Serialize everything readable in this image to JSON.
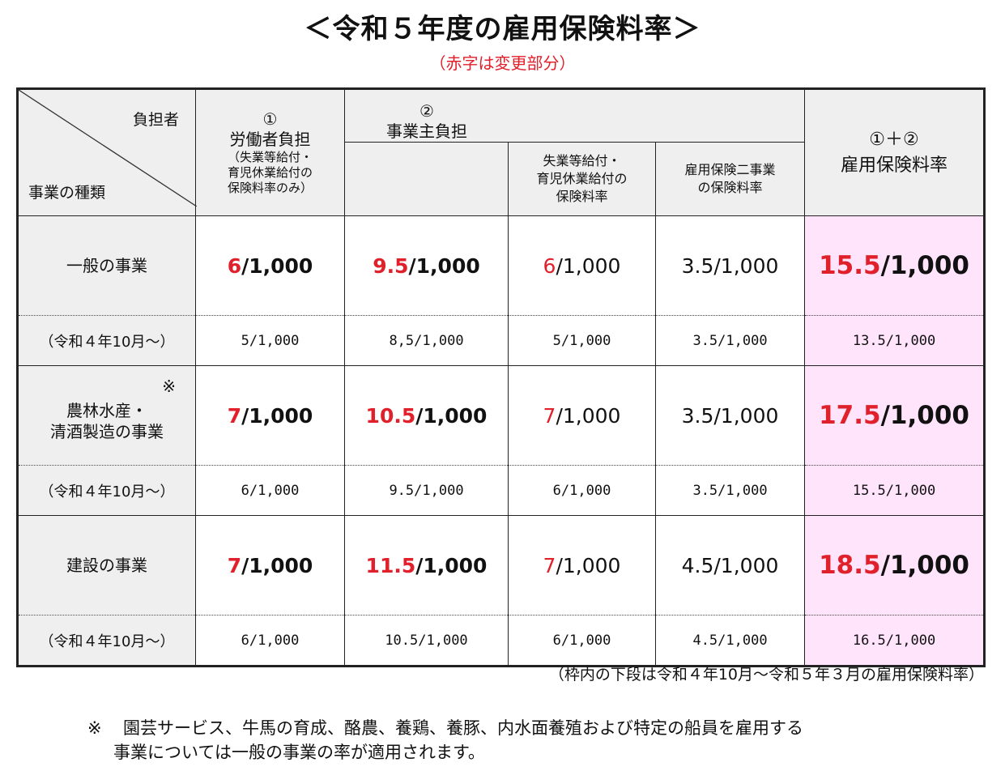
{
  "title": "＜令和５年度の雇用保険料率＞",
  "subtitle": "（赤字は変更部分）",
  "header": {
    "corner_top": "負担者",
    "corner_bottom": "事業の種類",
    "worker_num": "①",
    "worker_title": "労働者負担",
    "worker_note_1": "（失業等給付・",
    "worker_note_2": "育児休業給付の",
    "worker_note_3": "保険料率のみ）",
    "employer_num": "②",
    "employer_title": "事業主負担",
    "emp_sub1_1": "失業等給付・",
    "emp_sub1_2": "育児休業給付の",
    "emp_sub1_3": "保険料率",
    "emp_sub2_1": "雇用保険二事業",
    "emp_sub2_2": "の保険料率",
    "sum_num": "①＋②",
    "sum_title": "雇用保険料率"
  },
  "rows": [
    {
      "label": "一般の事業",
      "label2": "",
      "asterisk": "",
      "worker_red": "6",
      "worker_rest": "/1,000",
      "employer_red": "9.5",
      "employer_rest": "/1,000",
      "unemp_red": "6",
      "unemp_rest": "/1,000",
      "two": "3.5/1,000",
      "sum_red": "15.5",
      "sum_rest": "/1,000",
      "prev_label": "（令和４年10月～）",
      "prev": [
        "5/1,000",
        "8,5/1,000",
        "5/1,000",
        "3.5/1,000",
        "13.5/1,000"
      ]
    },
    {
      "label": "農林水産・",
      "label2": "清酒製造の事業",
      "asterisk": "※",
      "worker_red": "7",
      "worker_rest": "/1,000",
      "employer_red": "10.5",
      "employer_rest": "/1,000",
      "unemp_red": "7",
      "unemp_rest": "/1,000",
      "two": "3.5/1,000",
      "sum_red": "17.5",
      "sum_rest": "/1,000",
      "prev_label": "（令和４年10月～）",
      "prev": [
        "6/1,000",
        "9.5/1,000",
        "6/1,000",
        "3.5/1,000",
        "15.5/1,000"
      ]
    },
    {
      "label": "建設の事業",
      "label2": "",
      "asterisk": "",
      "worker_red": "7",
      "worker_rest": "/1,000",
      "employer_red": "11.5",
      "employer_rest": "/1,000",
      "unemp_red": "7",
      "unemp_rest": "/1,000",
      "two": "4.5/1,000",
      "sum_red": "18.5",
      "sum_rest": "/1,000",
      "prev_label": "（令和４年10月～）",
      "prev": [
        "6/1,000",
        "10.5/1,000",
        "6/1,000",
        "4.5/1,000",
        "16.5/1,000"
      ]
    }
  ],
  "range_note": "（枠内の下段は令和４年10月～令和５年３月の雇用保険料率）",
  "footnote": {
    "mark": "※",
    "line1": "園芸サービス、牛馬の育成、酪農、養鶏、養豚、内水面養殖および特定の船員を雇用する",
    "line2": "事業については一般の事業の率が適用されます。"
  },
  "colors": {
    "red": "#e0202a",
    "pink": "#ffe4fb",
    "header_gray": "#efefef"
  }
}
